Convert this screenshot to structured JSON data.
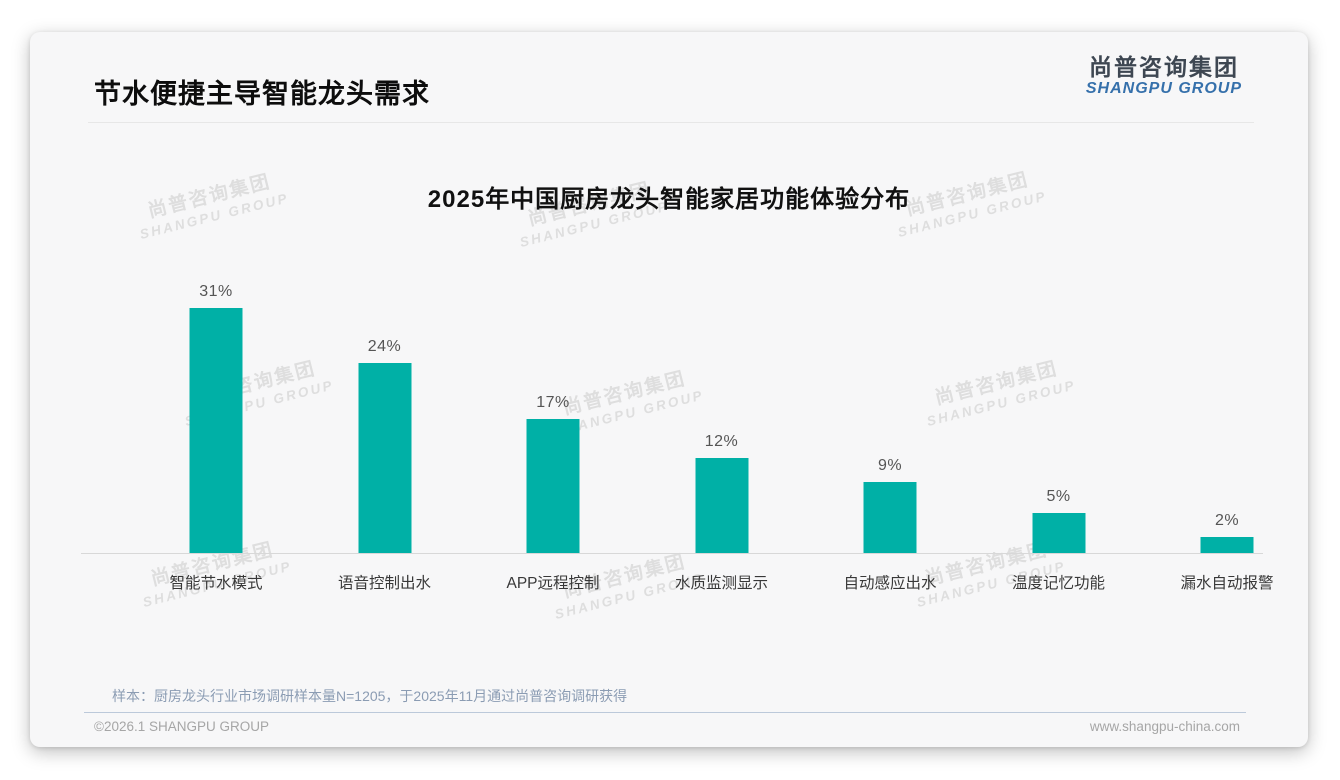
{
  "page": {
    "title": "节水便捷主导智能龙头需求",
    "logo": {
      "cn": "尚普咨询集团",
      "en": "SHANGPU GROUP"
    },
    "watermark": {
      "line1": "尚普咨询集团",
      "line2": "SHANGPU GROUP"
    },
    "note": "样本：厨房龙头行业市场调研样本量N=1205，于2025年11月通过尚普咨询调研获得",
    "footer_left": "©2026.1 SHANGPU GROUP",
    "footer_right": "www.shangpu-china.com"
  },
  "chart_data": {
    "type": "bar",
    "title": "2025年中国厨房龙头智能家居功能体验分布",
    "categories": [
      "智能节水模式",
      "语音控制出水",
      "APP远程控制",
      "水质监测显示",
      "自动感应出水",
      "温度记忆功能",
      "漏水自动报警"
    ],
    "values": [
      31,
      24,
      17,
      12,
      9,
      5,
      2
    ],
    "unit": "%",
    "bar_color": "#00b0a6",
    "value_label_color": "#555555",
    "xlabel": "",
    "ylabel": "",
    "ylim": [
      0,
      35
    ],
    "grid": false,
    "legend": "none",
    "value_labels_position": "above bars"
  }
}
